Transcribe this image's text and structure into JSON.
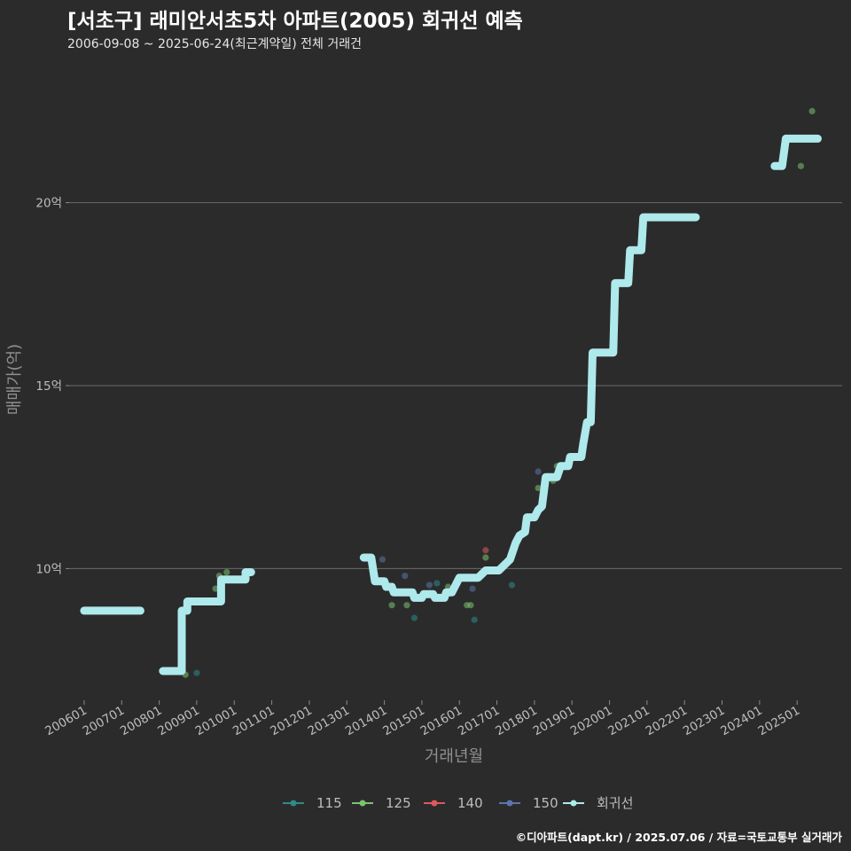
{
  "title": "[서초구] 래미안서초5차 아파트(2005) 회귀선 예측",
  "subtitle": "2006-09-08 ~ 2025-06-24(최근계약일) 전체 거래건",
  "caption": "©디아파트(dapt.kr) / 2025.07.06 / 자료=국토교통부 실거래가",
  "chart_data": {
    "type": "scatter",
    "xlabel": "거래년월",
    "ylabel": "매매가(억)",
    "y_unit_suffix": "억",
    "y_ticks": [
      10,
      15,
      20
    ],
    "y_tick_labels": [
      "10억",
      "15억",
      "20억"
    ],
    "ylim": [
      6.4,
      23.6
    ],
    "xlim": [
      2005.6,
      2026.2
    ],
    "x_ticks": [
      2006,
      2007,
      2008,
      2009,
      2010,
      2011,
      2012,
      2013,
      2014,
      2015,
      2016,
      2017,
      2018,
      2019,
      2020,
      2021,
      2022,
      2023,
      2024,
      2025
    ],
    "x_tick_labels": [
      "200601",
      "200701",
      "200801",
      "200901",
      "201001",
      "201101",
      "201201",
      "201301",
      "201401",
      "201501",
      "201601",
      "201701",
      "201801",
      "201901",
      "202001",
      "202101",
      "202201",
      "202301",
      "202401",
      "202501"
    ],
    "grid": true,
    "legend_position": "bottom",
    "series": [
      {
        "name": "115",
        "color": "#2e8b87",
        "kind": "points",
        "points": [
          [
            2009.0,
            7.15
          ],
          [
            2014.8,
            8.65
          ],
          [
            2015.4,
            9.6
          ],
          [
            2016.4,
            8.6
          ],
          [
            2017.4,
            9.55
          ]
        ]
      },
      {
        "name": "125",
        "color": "#7cc36f",
        "kind": "points",
        "points": [
          [
            2008.7,
            7.1
          ],
          [
            2009.5,
            9.45
          ],
          [
            2009.6,
            9.8
          ],
          [
            2009.8,
            9.9
          ],
          [
            2014.2,
            9.0
          ],
          [
            2014.6,
            9.0
          ],
          [
            2015.7,
            9.5
          ],
          [
            2016.2,
            9.0
          ],
          [
            2016.3,
            9.0
          ],
          [
            2016.7,
            10.3
          ],
          [
            2018.1,
            12.2
          ],
          [
            2018.5,
            12.4
          ],
          [
            2018.6,
            12.8
          ],
          [
            2025.1,
            21.0
          ],
          [
            2025.4,
            22.5
          ]
        ]
      },
      {
        "name": "140",
        "color": "#e0585a",
        "kind": "points",
        "points": [
          [
            2016.7,
            10.5
          ]
        ]
      },
      {
        "name": "150",
        "color": "#5a76a8",
        "kind": "points",
        "points": [
          [
            2013.95,
            10.25
          ],
          [
            2014.55,
            9.8
          ],
          [
            2015.2,
            9.55
          ],
          [
            2016.35,
            9.45
          ],
          [
            2018.1,
            12.65
          ]
        ]
      },
      {
        "name": "회귀선",
        "color": "#aee9ec",
        "kind": "line",
        "segments": [
          [
            [
              2006.0,
              8.85
            ],
            [
              2007.5,
              8.85
            ]
          ],
          [
            [
              2008.1,
              7.2
            ],
            [
              2008.6,
              7.2
            ],
            [
              2008.6,
              8.85
            ],
            [
              2008.75,
              8.85
            ],
            [
              2008.75,
              9.1
            ],
            [
              2009.65,
              9.1
            ],
            [
              2009.65,
              9.7
            ],
            [
              2010.3,
              9.7
            ],
            [
              2010.3,
              9.9
            ],
            [
              2010.45,
              9.9
            ]
          ],
          [
            [
              2013.45,
              10.3
            ],
            [
              2013.65,
              10.3
            ],
            [
              2013.75,
              9.65
            ],
            [
              2014.0,
              9.65
            ],
            [
              2014.05,
              9.5
            ],
            [
              2014.2,
              9.5
            ],
            [
              2014.25,
              9.35
            ],
            [
              2014.75,
              9.35
            ],
            [
              2014.8,
              9.2
            ],
            [
              2015.0,
              9.2
            ],
            [
              2015.05,
              9.3
            ],
            [
              2015.3,
              9.3
            ],
            [
              2015.35,
              9.2
            ],
            [
              2015.6,
              9.2
            ],
            [
              2015.65,
              9.35
            ],
            [
              2015.8,
              9.35
            ],
            [
              2016.0,
              9.75
            ],
            [
              2016.5,
              9.75
            ],
            [
              2016.6,
              9.85
            ],
            [
              2016.7,
              9.95
            ],
            [
              2017.05,
              9.95
            ],
            [
              2017.35,
              10.25
            ],
            [
              2017.5,
              10.7
            ],
            [
              2017.6,
              10.9
            ],
            [
              2017.75,
              11.0
            ],
            [
              2017.8,
              11.4
            ],
            [
              2018.0,
              11.4
            ],
            [
              2018.1,
              11.6
            ],
            [
              2018.2,
              11.7
            ],
            [
              2018.3,
              12.5
            ],
            [
              2018.5,
              12.5
            ],
            [
              2018.6,
              12.5
            ],
            [
              2018.7,
              12.8
            ],
            [
              2018.9,
              12.8
            ],
            [
              2018.95,
              13.05
            ],
            [
              2019.25,
              13.05
            ],
            [
              2019.3,
              13.4
            ],
            [
              2019.4,
              14.0
            ],
            [
              2019.5,
              14.0
            ],
            [
              2019.55,
              15.9
            ],
            [
              2020.1,
              15.9
            ],
            [
              2020.15,
              17.8
            ],
            [
              2020.5,
              17.8
            ],
            [
              2020.55,
              18.7
            ],
            [
              2020.85,
              18.7
            ],
            [
              2020.9,
              19.6
            ],
            [
              2022.3,
              19.6
            ]
          ],
          [
            [
              2024.4,
              21.0
            ],
            [
              2024.6,
              21.0
            ],
            [
              2024.7,
              21.75
            ],
            [
              2025.55,
              21.75
            ]
          ]
        ]
      }
    ]
  }
}
